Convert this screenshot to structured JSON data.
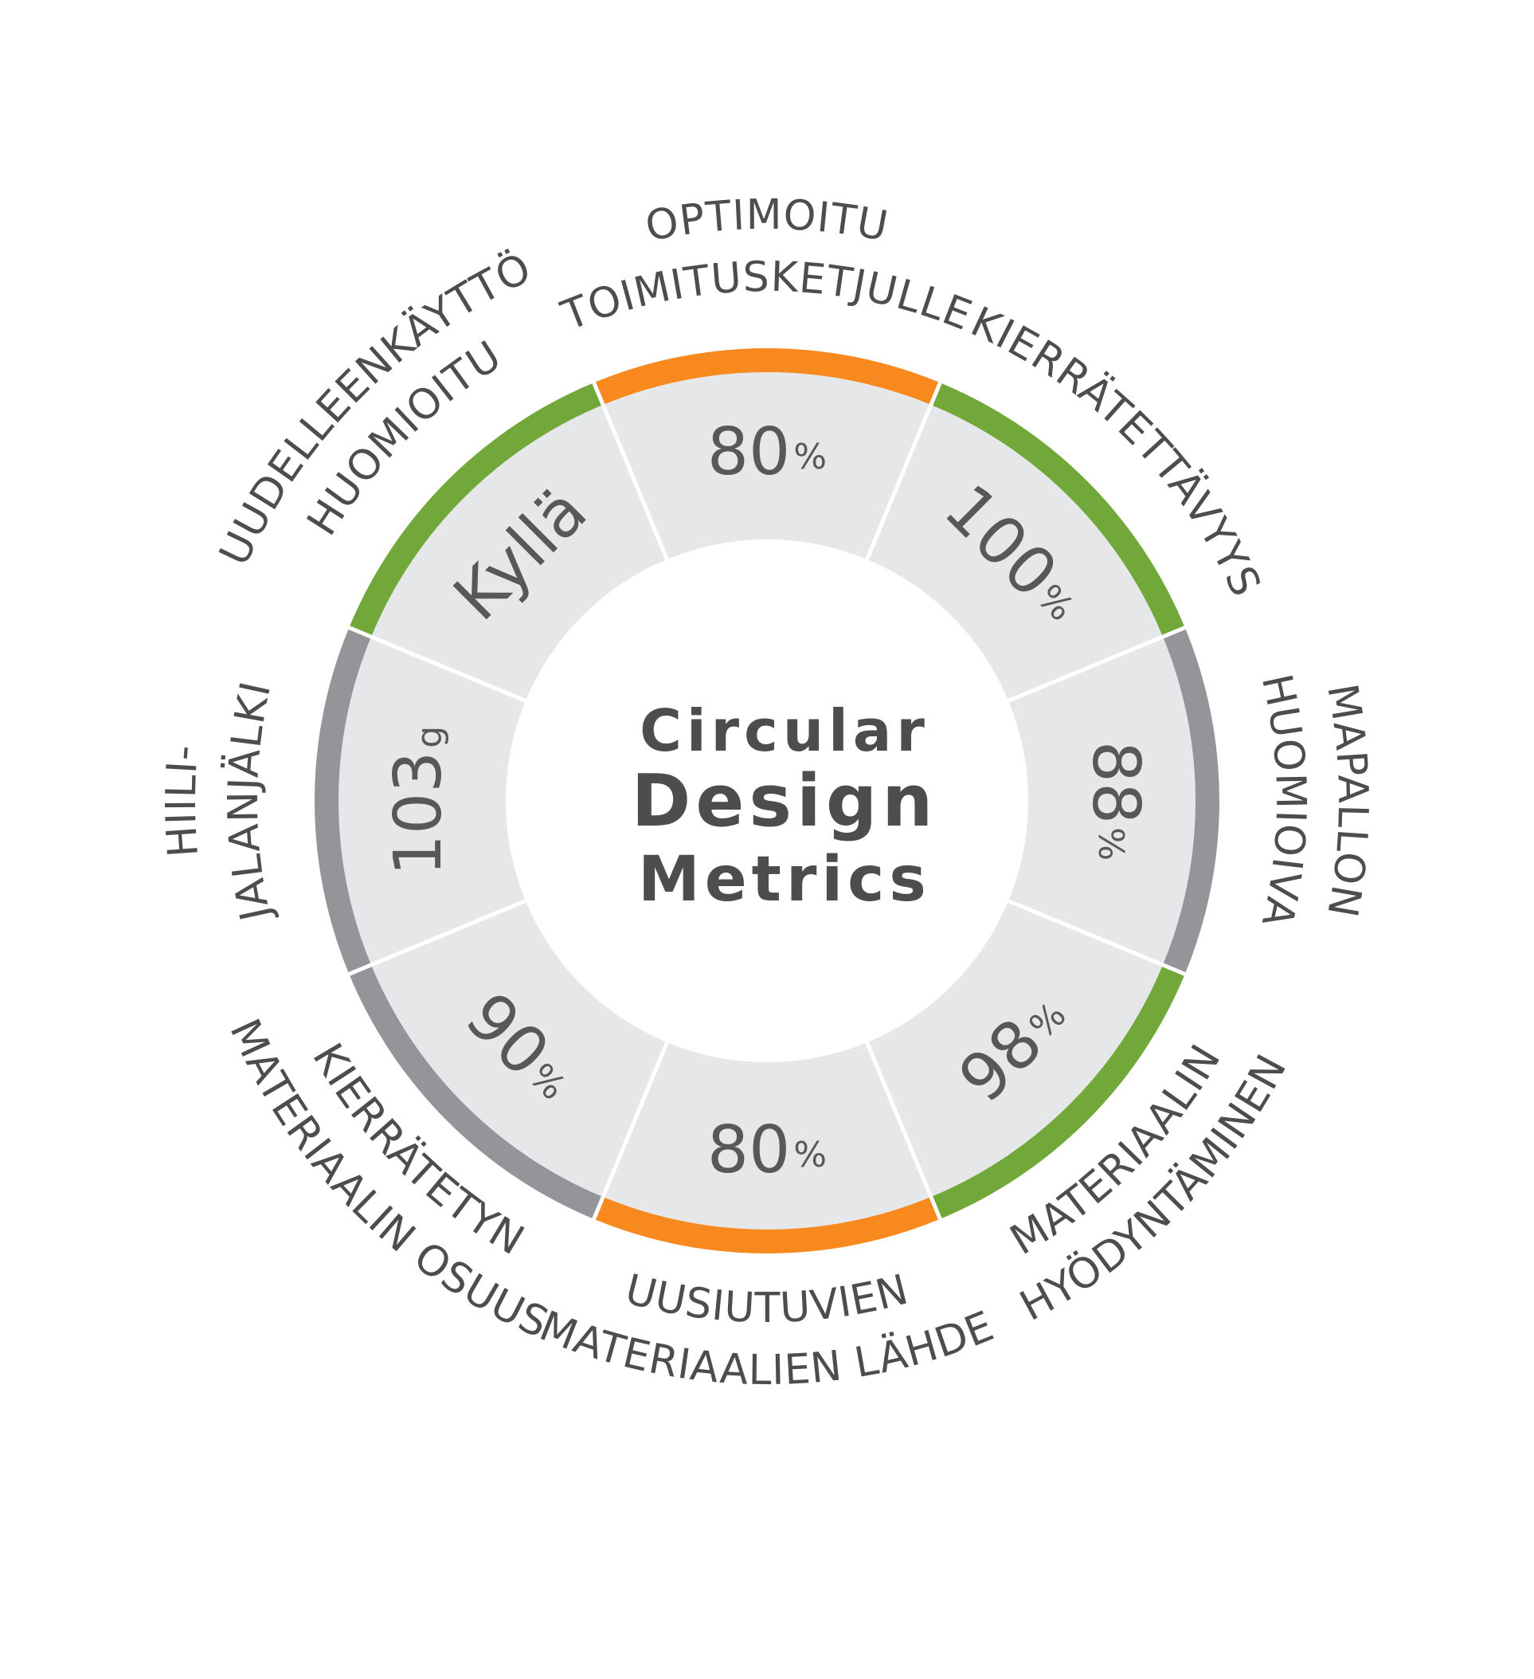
{
  "center": {
    "line1": "Circular",
    "line2": "Design",
    "line3": "Metrics"
  },
  "colors": {
    "segment_fill": "#e6e7e8",
    "divider": "#ffffff",
    "orange": "#f7891f",
    "green": "#72a83a",
    "gray": "#939598",
    "text": "#4d4d4d",
    "value_text": "#585858"
  },
  "segments": [
    {
      "value": "80",
      "unit": "%",
      "ring_color": "orange",
      "label_lines": [
        "OPTIMOITU",
        "TOIMITUSKETJULLE"
      ]
    },
    {
      "value": "100",
      "unit": "%",
      "ring_color": "green",
      "label_lines": [
        "KIERRÄTETTÄVYYS"
      ]
    },
    {
      "value": "88",
      "unit": "%",
      "ring_color": "gray",
      "label_lines": [
        "MAPALLON",
        "HUOMIOIVA"
      ]
    },
    {
      "value": "98",
      "unit": "%",
      "ring_color": "green",
      "label_lines": [
        "MATERIAALIN",
        "HYÖDYNTÄMINEN"
      ]
    },
    {
      "value": "80",
      "unit": "%",
      "ring_color": "orange",
      "label_lines": [
        "UUSIUTUVIEN",
        "MATERIAALIEN LÄHDE"
      ]
    },
    {
      "value": "90",
      "unit": "%",
      "ring_color": "gray",
      "label_lines": [
        "KIERRÄTETYN",
        "MATERIAALIN OSUUS"
      ]
    },
    {
      "value": "103",
      "unit": "g",
      "ring_color": "gray",
      "label_lines": [
        "HIILI-",
        "JALANJÄLKI"
      ]
    },
    {
      "value": "Kyllä",
      "unit": "",
      "ring_color": "green",
      "label_lines": [
        "UUDELLEENKÄYTTÖ",
        "HUOMIOITU"
      ]
    }
  ]
}
